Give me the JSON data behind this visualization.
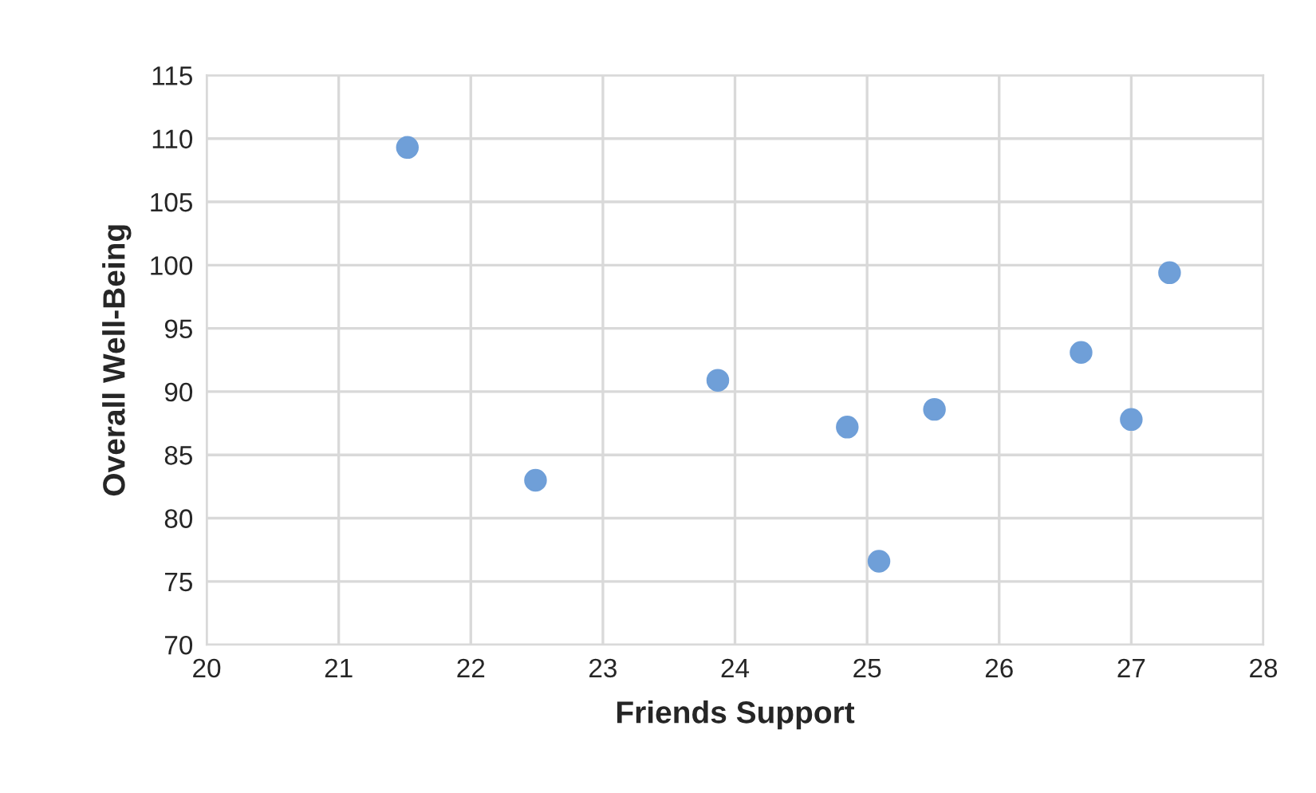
{
  "chart_data": {
    "type": "scatter",
    "xlabel": "Friends Support",
    "ylabel": "Overall Well-Being",
    "series": [
      {
        "color": "#6f9fd8",
        "x": [
          21.52,
          22.49,
          23.87,
          24.85,
          25.09,
          25.51,
          26.62,
          27.0,
          27.29
        ],
        "values": [
          109.3,
          83,
          90.9,
          87.2,
          76.6,
          88.6,
          93.1,
          87.8,
          99.4
        ]
      }
    ],
    "xlim": [
      20,
      28
    ],
    "xticks": [
      20,
      21,
      22,
      23,
      24,
      25,
      26,
      27,
      28
    ],
    "ylim": [
      70,
      115
    ],
    "yticks": [
      70,
      75,
      80,
      85,
      90,
      95,
      100,
      105,
      110,
      115
    ],
    "grid": true,
    "marker": "circle",
    "legend": false
  }
}
